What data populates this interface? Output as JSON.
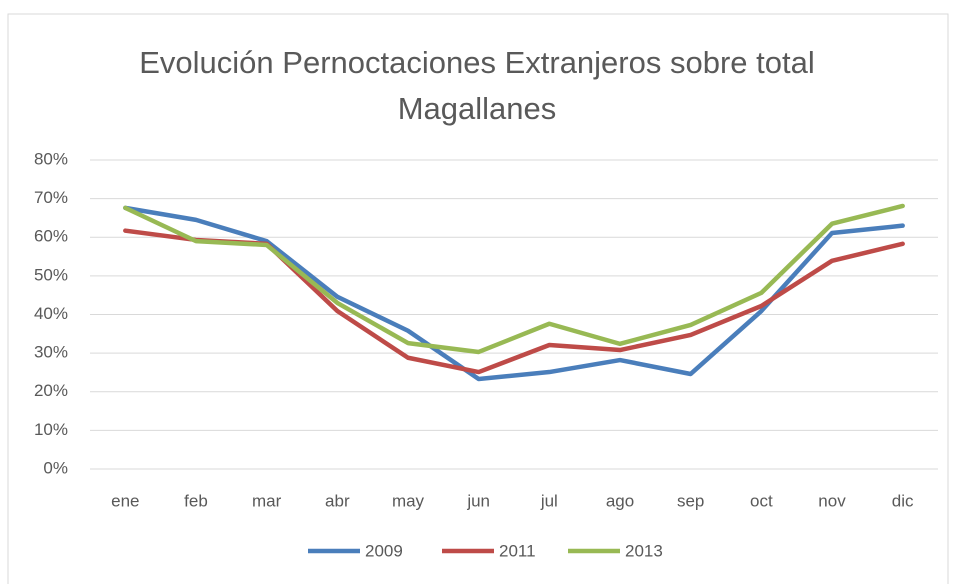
{
  "chart_data": {
    "type": "line",
    "title": "Evolución Pernoctaciones Extranjeros sobre total Magallanes",
    "categories": [
      "ene",
      "feb",
      "mar",
      "abr",
      "may",
      "jun",
      "jul",
      "ago",
      "sep",
      "oct",
      "nov",
      "dic"
    ],
    "series": [
      {
        "name": "2009",
        "color": "#4a7ebb",
        "values": [
          67.6,
          64.5,
          59,
          44.6,
          35.8,
          23.3,
          25.1,
          28.2,
          24.6,
          40.9,
          61.1,
          63
        ]
      },
      {
        "name": "2011",
        "color": "#be4b48",
        "values": [
          61.7,
          59.3,
          58.3,
          40.9,
          28.8,
          25.1,
          32.1,
          30.8,
          34.7,
          42.2,
          53.9,
          58.3
        ]
      },
      {
        "name": "2013",
        "color": "#98b954",
        "values": [
          67.6,
          59,
          58,
          43,
          32.6,
          30.3,
          37.6,
          32.4,
          37.3,
          45.6,
          63.5,
          68.1
        ]
      }
    ],
    "ylim": [
      0,
      80
    ],
    "yticks": [
      {
        "value": 0,
        "label": "0%"
      },
      {
        "value": 10,
        "label": "10%"
      },
      {
        "value": 20,
        "label": "20%"
      },
      {
        "value": 30,
        "label": "30%"
      },
      {
        "value": 40,
        "label": "40%"
      },
      {
        "value": 50,
        "label": "50%"
      },
      {
        "value": 60,
        "label": "60%"
      },
      {
        "value": 70,
        "label": "70%"
      },
      {
        "value": 80,
        "label": "80%"
      }
    ],
    "grid": true,
    "legend": "bottom"
  }
}
